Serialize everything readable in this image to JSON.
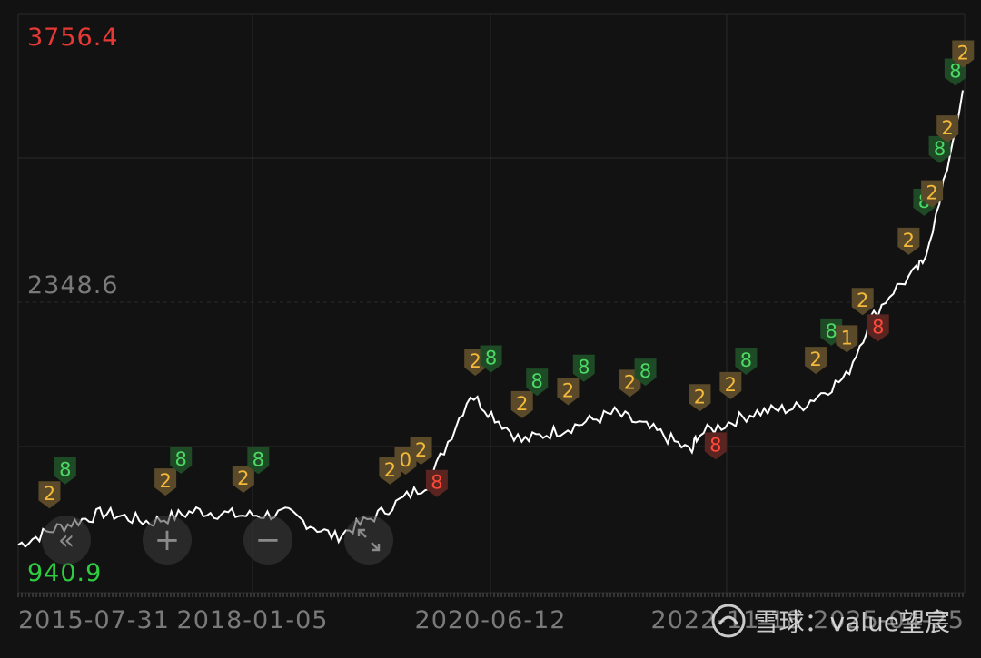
{
  "chart_data": {
    "type": "line",
    "y_max_label": "3756.4",
    "y_mid_label": "2348.6",
    "y_min_label": "940.9",
    "ylim": [
      940.9,
      3756.4
    ],
    "x_tick_labels": [
      "2015-07-31",
      "2018-01-05",
      "2020-06-12",
      "2022-11-18",
      "2025-04-25"
    ],
    "x": [
      "2015-07-31",
      "2015-12-31",
      "2016-06-30",
      "2016-12-30",
      "2017-06-30",
      "2017-12-29",
      "2018-06-29",
      "2018-12-28",
      "2019-06-28",
      "2019-12-31",
      "2020-03-31",
      "2020-06-12",
      "2020-09-30",
      "2020-12-31",
      "2021-06-30",
      "2021-12-31",
      "2022-06-30",
      "2022-10-31",
      "2022-11-18",
      "2023-06-30",
      "2023-12-29",
      "2024-06-28",
      "2024-09-30",
      "2024-12-31",
      "2025-03-31",
      "2025-04-25",
      "2025-06-30",
      "2025-09-30"
    ],
    "values": [
      1060,
      1150,
      1230,
      1180,
      1240,
      1215,
      1225,
      1100,
      1230,
      1390,
      1650,
      1860,
      1720,
      1610,
      1680,
      1760,
      1650,
      1550,
      1640,
      1760,
      1790,
      1950,
      2250,
      2410,
      2510,
      2560,
      2860,
      3470
    ],
    "markers": [
      {
        "date": "2015-12-01",
        "label": "2",
        "kind": "orange"
      },
      {
        "date": "2016-02-01",
        "label": "8",
        "kind": "green"
      },
      {
        "date": "2017-03-01",
        "label": "2",
        "kind": "orange"
      },
      {
        "date": "2017-05-01",
        "label": "8",
        "kind": "green"
      },
      {
        "date": "2018-01-01",
        "label": "2",
        "kind": "orange"
      },
      {
        "date": "2018-03-01",
        "label": "8",
        "kind": "green"
      },
      {
        "date": "2019-08-01",
        "label": "2",
        "kind": "orange"
      },
      {
        "date": "2019-10-01",
        "label": "0",
        "kind": "orange"
      },
      {
        "date": "2019-12-01",
        "label": "2",
        "kind": "orange"
      },
      {
        "date": "2020-02-01",
        "label": "8",
        "kind": "red"
      },
      {
        "date": "2020-07-01",
        "label": "2",
        "kind": "orange"
      },
      {
        "date": "2020-09-01",
        "label": "8",
        "kind": "green"
      },
      {
        "date": "2021-01-01",
        "label": "2",
        "kind": "orange"
      },
      {
        "date": "2021-03-01",
        "label": "8",
        "kind": "green"
      },
      {
        "date": "2021-07-01",
        "label": "2",
        "kind": "orange"
      },
      {
        "date": "2021-09-01",
        "label": "8",
        "kind": "green"
      },
      {
        "date": "2022-03-01",
        "label": "2",
        "kind": "orange"
      },
      {
        "date": "2022-05-01",
        "label": "8",
        "kind": "green"
      },
      {
        "date": "2022-12-01",
        "label": "2",
        "kind": "orange"
      },
      {
        "date": "2023-02-01",
        "label": "8",
        "kind": "red"
      },
      {
        "date": "2023-04-01",
        "label": "2",
        "kind": "orange"
      },
      {
        "date": "2023-06-01",
        "label": "8",
        "kind": "green"
      },
      {
        "date": "2024-03-01",
        "label": "2",
        "kind": "orange"
      },
      {
        "date": "2024-05-01",
        "label": "8",
        "kind": "green"
      },
      {
        "date": "2024-07-01",
        "label": "1",
        "kind": "orange"
      },
      {
        "date": "2024-09-01",
        "label": "2",
        "kind": "orange"
      },
      {
        "date": "2024-11-01",
        "label": "8",
        "kind": "red"
      },
      {
        "date": "2025-03-01",
        "label": "2",
        "kind": "orange"
      },
      {
        "date": "2025-05-01",
        "label": "8",
        "kind": "green"
      },
      {
        "date": "2025-06-01",
        "label": "2",
        "kind": "orange"
      },
      {
        "date": "2025-07-01",
        "label": "8",
        "kind": "green"
      },
      {
        "date": "2025-08-01",
        "label": "2",
        "kind": "orange"
      },
      {
        "date": "2025-09-01",
        "label": "8",
        "kind": "green"
      },
      {
        "date": "2025-10-01",
        "label": "2",
        "kind": "orange"
      }
    ],
    "grid": true
  },
  "colors": {
    "background": "#121212",
    "grid": "#2a2a2a",
    "line": "#ffffff",
    "max_label": "#e53935",
    "mid_label": "#7a7a7a",
    "min_label": "#2ecc40",
    "marker_orange_text": "#f5b93a",
    "marker_green_text": "#4cd964",
    "marker_red_text": "#ff4a3a"
  },
  "controls": {
    "back_icon": "double-chevron-left-icon",
    "zoom_in_icon": "plus-icon",
    "zoom_out_icon": "minus-icon",
    "expand_icon": "expand-icon"
  },
  "watermark": {
    "text": "雪球：value望宸",
    "icon": "snowball-logo"
  }
}
